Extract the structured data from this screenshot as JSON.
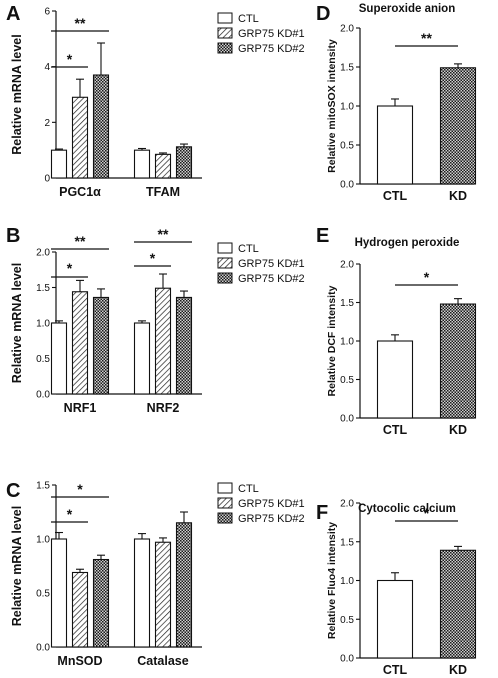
{
  "legend": [
    "CTL",
    "GRP75 KD#1",
    "GRP75 KD#2"
  ],
  "chart_data": [
    {
      "panel": "A",
      "type": "bar",
      "ylabel": "Relative mRNA level",
      "ylim": [
        0,
        6
      ],
      "yticks": [
        "0",
        "2",
        "4",
        "6"
      ],
      "categories": [
        "PGC1α",
        "TFAM"
      ],
      "series": [
        {
          "name": "CTL",
          "values": [
            1.0,
            1.0
          ],
          "errors": [
            0.04,
            0.06
          ]
        },
        {
          "name": "GRP75 KD#1",
          "values": [
            2.9,
            0.85
          ],
          "errors": [
            0.65,
            0.05
          ]
        },
        {
          "name": "GRP75 KD#2",
          "values": [
            3.7,
            1.12
          ],
          "errors": [
            1.15,
            0.1
          ]
        }
      ],
      "significance": [
        {
          "label": "*",
          "from": [
            0,
            0
          ],
          "to": [
            0,
            1
          ]
        },
        {
          "label": "**",
          "from": [
            0,
            0
          ],
          "to": [
            0,
            2
          ]
        }
      ]
    },
    {
      "panel": "B",
      "type": "bar",
      "ylabel": "Relative mRNA level",
      "ylim": [
        0,
        2.0
      ],
      "yticks": [
        "0.0",
        "0.5",
        "1.0",
        "1.5",
        "2.0"
      ],
      "categories": [
        "NRF1",
        "NRF2"
      ],
      "series": [
        {
          "name": "CTL",
          "values": [
            1.0,
            1.0
          ],
          "errors": [
            0.03,
            0.03
          ]
        },
        {
          "name": "GRP75 KD#1",
          "values": [
            1.44,
            1.49
          ],
          "errors": [
            0.16,
            0.2
          ]
        },
        {
          "name": "GRP75 KD#2",
          "values": [
            1.36,
            1.36
          ],
          "errors": [
            0.12,
            0.09
          ]
        }
      ],
      "significance": [
        {
          "label": "*",
          "from": [
            0,
            0
          ],
          "to": [
            0,
            1
          ]
        },
        {
          "label": "**",
          "from": [
            0,
            0
          ],
          "to": [
            0,
            2
          ]
        },
        {
          "label": "*",
          "from": [
            1,
            0
          ],
          "to": [
            1,
            1
          ]
        },
        {
          "label": "**",
          "from": [
            1,
            0
          ],
          "to": [
            1,
            2
          ]
        }
      ]
    },
    {
      "panel": "C",
      "type": "bar",
      "ylabel": "Relative mRNA level",
      "ylim": [
        0,
        1.5
      ],
      "yticks": [
        "0.0",
        "0.5",
        "1.0",
        "1.5"
      ],
      "categories": [
        "MnSOD",
        "Catalase"
      ],
      "series": [
        {
          "name": "CTL",
          "values": [
            1.0,
            1.0
          ],
          "errors": [
            0.06,
            0.05
          ]
        },
        {
          "name": "GRP75 KD#1",
          "values": [
            0.69,
            0.97
          ],
          "errors": [
            0.03,
            0.04
          ]
        },
        {
          "name": "GRP75 KD#2",
          "values": [
            0.81,
            1.15
          ],
          "errors": [
            0.04,
            0.1
          ]
        }
      ],
      "significance": [
        {
          "label": "*",
          "from": [
            0,
            0
          ],
          "to": [
            0,
            1
          ]
        },
        {
          "label": "*",
          "from": [
            0,
            0
          ],
          "to": [
            0,
            2
          ]
        }
      ]
    },
    {
      "panel": "D",
      "type": "bar",
      "title": "Superoxide anion",
      "ylabel": "Relative mitoSOX intensity",
      "ylim": [
        0,
        2.0
      ],
      "yticks": [
        "0.0",
        "0.5",
        "1.0",
        "1.5",
        "2.0"
      ],
      "categories": [
        "CTL",
        "KD"
      ],
      "values": [
        1.0,
        1.49
      ],
      "errors": [
        0.09,
        0.05
      ],
      "significance": [
        {
          "label": "**"
        }
      ]
    },
    {
      "panel": "E",
      "type": "bar",
      "title": "Hydrogen peroxide",
      "ylabel": "Relative DCF intensity",
      "ylim": [
        0,
        2.0
      ],
      "yticks": [
        "0.0",
        "0.5",
        "1.0",
        "1.5",
        "2.0"
      ],
      "categories": [
        "CTL",
        "KD"
      ],
      "values": [
        1.0,
        1.48
      ],
      "errors": [
        0.08,
        0.07
      ],
      "significance": [
        {
          "label": "*"
        }
      ]
    },
    {
      "panel": "F",
      "type": "bar",
      "title": "Cytocolic calcium",
      "ylabel": "Relative Fluo4 intensity",
      "ylim": [
        0,
        2.0
      ],
      "yticks": [
        "0.0",
        "0.5",
        "1.0",
        "1.5",
        "2.0"
      ],
      "categories": [
        "CTL",
        "KD"
      ],
      "values": [
        1.0,
        1.39
      ],
      "errors": [
        0.1,
        0.05
      ],
      "significance": [
        {
          "label": "*"
        }
      ]
    }
  ]
}
